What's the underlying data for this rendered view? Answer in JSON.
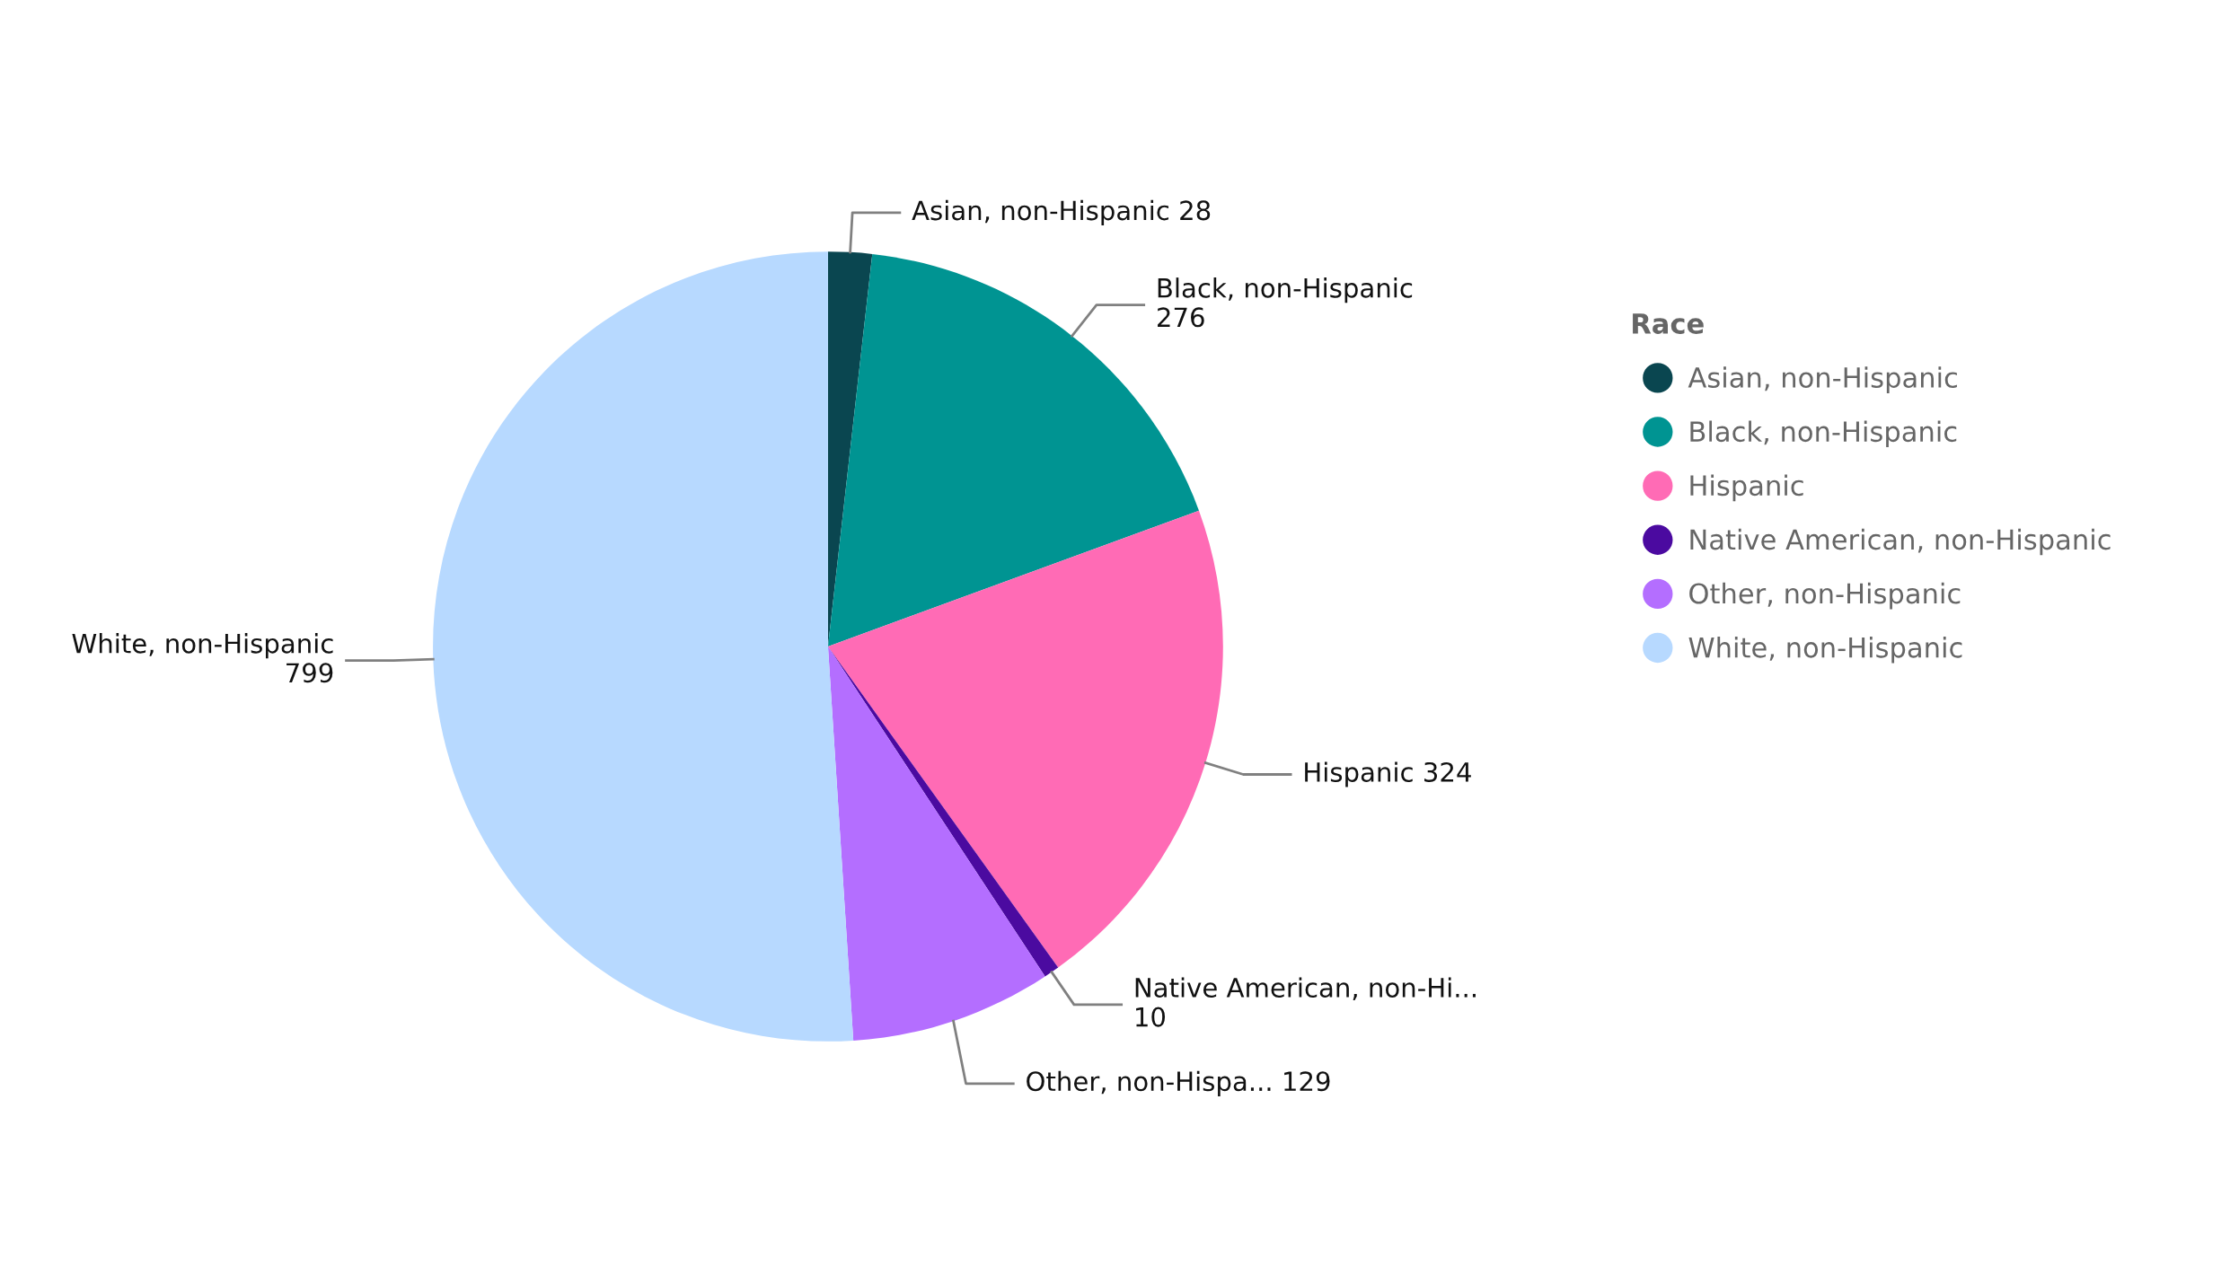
{
  "chart_data": {
    "type": "pie",
    "legend_title": "Race",
    "legend": "right",
    "categories": [
      "Asian, non-Hispanic",
      "Black, non-Hispanic",
      "Hispanic",
      "Native American, non-Hispanic",
      "Other, non-Hispanic",
      "White, non-Hispanic"
    ],
    "values": [
      28,
      276,
      324,
      10,
      129,
      799
    ],
    "colors": [
      "#0a4650",
      "#009492",
      "#ff6bb5",
      "#4b0aa0",
      "#b46eff",
      "#b7d9ff"
    ],
    "value_labels": [
      "Asian, non-Hispanic 28",
      "Black, non-Hispanic\n276",
      "Hispanic 324",
      "Native American, non-Hi...\n10",
      "Other, non-Hispa... 129",
      "White, non-Hispanic\n799"
    ]
  }
}
